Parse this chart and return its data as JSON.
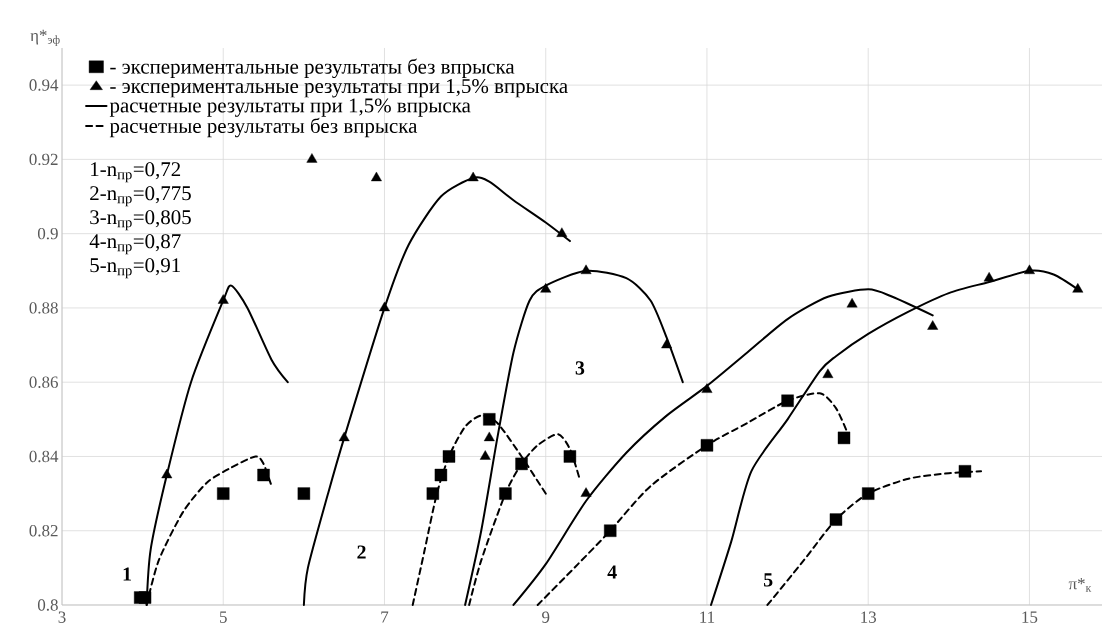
{
  "chart_data": {
    "type": "line",
    "xlabel": "π*$_{к}$",
    "ylabel": "η*$_{эф}$",
    "xlim": [
      3,
      15.9
    ],
    "ylim": [
      0.8,
      0.95
    ],
    "xticks": [
      3,
      5,
      7,
      9,
      11,
      13,
      15
    ],
    "yticks": [
      0.8,
      0.82,
      0.84,
      0.86,
      0.88,
      0.9,
      0.92,
      0.94
    ],
    "grid": true,
    "legend": "top left",
    "annotations": [
      "1-n$_{пр}$=0,72",
      "2-n$_{пр}$=0,775",
      "3-n$_{пр}$=0,805",
      "4-n$_{пр}$=0,87",
      "5-n$_{пр}$=0,91",
      "1",
      "2",
      "3",
      "4",
      "5"
    ],
    "series": [
      {
        "name": "- экспериментальные результаты без впрыска",
        "type": "scatter",
        "marker": "square",
        "color": "#000000",
        "x": [
          3.97,
          4.03,
          5.0,
          5.5,
          6.0,
          7.6,
          7.7,
          7.8,
          8.3,
          8.5,
          8.7,
          9.3,
          9.8,
          11.0,
          12.0,
          12.7,
          12.6,
          13.0,
          14.2
        ],
        "values": [
          0.802,
          0.802,
          0.83,
          0.835,
          0.83,
          0.83,
          0.835,
          0.84,
          0.85,
          0.83,
          0.838,
          0.84,
          0.82,
          0.843,
          0.855,
          0.845,
          0.823,
          0.83,
          0.836
        ]
      },
      {
        "name": "- экспериментальные результаты при 1,5% впрыска",
        "type": "scatter",
        "marker": "triangle",
        "color": "#000000",
        "x": [
          4.3,
          5.0,
          6.1,
          6.5,
          6.9,
          7.0,
          8.1,
          8.25,
          8.3,
          9.0,
          9.2,
          9.5,
          9.5,
          10.5,
          11.0,
          12.5,
          12.8,
          13.8,
          14.5,
          15.0,
          15.6
        ],
        "values": [
          0.835,
          0.882,
          0.92,
          0.845,
          0.915,
          0.88,
          0.915,
          0.84,
          0.845,
          0.885,
          0.9,
          0.89,
          0.83,
          0.87,
          0.858,
          0.862,
          0.881,
          0.875,
          0.888,
          0.89,
          0.885
        ]
      },
      {
        "name": "расчетные результаты при 1,5% впрыска",
        "line_style": "solid",
        "color": "#000000",
        "x": [
          4.05,
          4.1,
          4.3,
          4.6,
          5.0,
          5.1,
          5.3,
          5.6,
          5.8
        ],
        "values": [
          0.8,
          0.815,
          0.835,
          0.86,
          0.882,
          0.886,
          0.88,
          0.866,
          0.86
        ]
      },
      {
        "name": "расчетные результаты без впрыска",
        "line_style": "dashed",
        "color": "#000000",
        "x": [
          4.05,
          4.2,
          4.5,
          4.8,
          5.1,
          5.4,
          5.5,
          5.6
        ],
        "values": [
          0.8,
          0.812,
          0.825,
          0.833,
          0.837,
          0.84,
          0.838,
          0.832
        ]
      },
      {
        "line_style": "solid",
        "color": "#000000",
        "x": [
          6.0,
          6.05,
          6.3,
          6.5,
          7.0,
          7.3,
          7.7,
          8.1,
          8.3,
          8.6,
          9.0,
          9.3
        ],
        "values": [
          0.8,
          0.81,
          0.83,
          0.845,
          0.88,
          0.897,
          0.91,
          0.915,
          0.914,
          0.909,
          0.903,
          0.898
        ]
      },
      {
        "line_style": "solid",
        "color": "#000000",
        "x": [
          8.0,
          8.2,
          8.4,
          8.6,
          8.8,
          9.0,
          9.5,
          10.0,
          10.3,
          10.5,
          10.7
        ],
        "values": [
          0.8,
          0.82,
          0.845,
          0.868,
          0.882,
          0.886,
          0.89,
          0.888,
          0.882,
          0.872,
          0.86
        ]
      },
      {
        "line_style": "solid",
        "color": "#000000",
        "x": [
          8.6,
          9.0,
          9.5,
          10.0,
          10.5,
          11.0,
          11.5,
          12.0,
          12.5,
          13.0,
          13.3,
          13.8
        ],
        "values": [
          0.8,
          0.811,
          0.828,
          0.841,
          0.851,
          0.859,
          0.868,
          0.877,
          0.883,
          0.885,
          0.883,
          0.878
        ]
      },
      {
        "line_style": "solid",
        "color": "#000000",
        "x": [
          11.05,
          11.3,
          11.55,
          12.0,
          12.4,
          12.6,
          13.0,
          13.5,
          14.0,
          14.5,
          15.0,
          15.3,
          15.6
        ],
        "values": [
          0.8,
          0.817,
          0.836,
          0.85,
          0.863,
          0.867,
          0.873,
          0.879,
          0.884,
          0.887,
          0.89,
          0.889,
          0.885
        ]
      },
      {
        "line_style": "dashed",
        "color": "#000000",
        "x": [
          7.35,
          7.5,
          7.65,
          7.8,
          8.0,
          8.2,
          8.4,
          8.7,
          9.0
        ],
        "values": [
          0.8,
          0.815,
          0.83,
          0.84,
          0.848,
          0.851,
          0.849,
          0.84,
          0.83
        ]
      },
      {
        "line_style": "dashed",
        "color": "#000000",
        "x": [
          8.05,
          8.2,
          8.5,
          8.7,
          8.9,
          9.15,
          9.3,
          9.42
        ],
        "values": [
          0.8,
          0.812,
          0.83,
          0.838,
          0.843,
          0.846,
          0.842,
          0.834
        ]
      },
      {
        "line_style": "dashed",
        "color": "#000000",
        "x": [
          8.9,
          9.4,
          9.8,
          10.3,
          11.0,
          11.5,
          12.0,
          12.4,
          12.6,
          12.75
        ],
        "values": [
          0.8,
          0.811,
          0.82,
          0.832,
          0.843,
          0.849,
          0.855,
          0.857,
          0.853,
          0.846
        ]
      },
      {
        "line_style": "dashed",
        "color": "#000000",
        "x": [
          11.75,
          12.2,
          12.6,
          13.0,
          13.5,
          14.0,
          14.4
        ],
        "values": [
          0.8,
          0.812,
          0.823,
          0.83,
          0.834,
          0.8355,
          0.836
        ]
      }
    ]
  }
}
